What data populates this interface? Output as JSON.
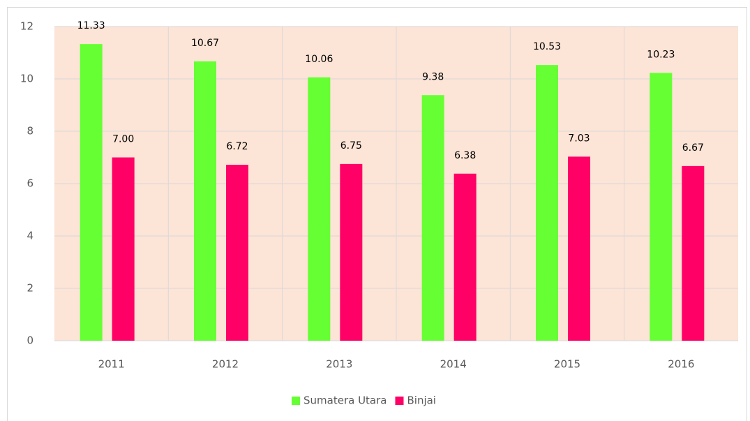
{
  "chart_data": {
    "type": "bar",
    "categories": [
      "2011",
      "2012",
      "2013",
      "2014",
      "2015",
      "2016"
    ],
    "series": [
      {
        "name": "Sumatera Utara",
        "color": "#66ff33",
        "values": [
          11.33,
          10.67,
          10.06,
          9.38,
          10.53,
          10.23
        ],
        "value_labels": [
          "11.33",
          "10.67",
          "10.06",
          "9.38",
          "10.53",
          "10.23"
        ]
      },
      {
        "name": "Binjai",
        "color": "#ff0066",
        "values": [
          7.0,
          6.72,
          6.75,
          6.38,
          7.03,
          6.67
        ],
        "value_labels": [
          "7.00",
          "6.72",
          "6.75",
          "6.38",
          "7.03",
          "6.67"
        ]
      }
    ],
    "ylim": [
      0,
      12
    ],
    "yticks": [
      0,
      2,
      4,
      6,
      8,
      10,
      12
    ],
    "grid": true,
    "legend": "bottom"
  }
}
